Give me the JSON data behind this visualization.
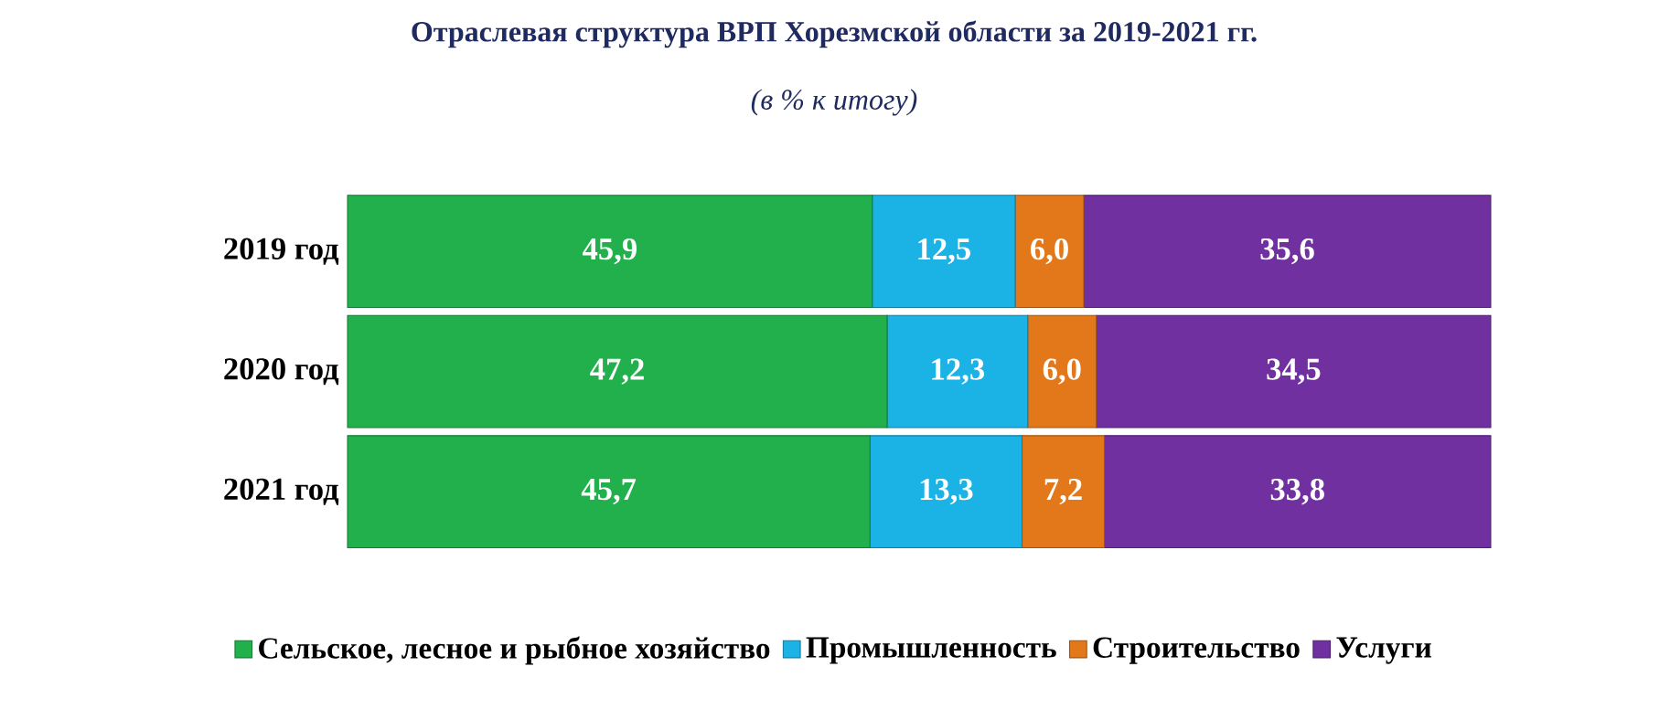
{
  "chart_data": {
    "type": "bar",
    "orientation": "horizontal",
    "stacked": true,
    "title": "Отраслевая структура ВРП Хорезмской области за 2019-2021 гг.",
    "subtitle": "(в % к итогу)",
    "categories": [
      "2019 год",
      "2020 год",
      "2021 год"
    ],
    "xlim": [
      0,
      100
    ],
    "tick_labels": "y",
    "legend": "bottom",
    "series": [
      {
        "name": "Сельское, лесное и рыбное хозяйство",
        "color": "#21b04b",
        "values": [
          45.9,
          47.2,
          45.7
        ],
        "value_labels": [
          "45,9",
          "47,2",
          "45,7"
        ]
      },
      {
        "name": "Промышленность",
        "color": "#1bb3e6",
        "values": [
          12.5,
          12.3,
          13.3
        ],
        "value_labels": [
          "12,5",
          "12,3",
          "13,3"
        ]
      },
      {
        "name": "Строительство",
        "color": "#e3781b",
        "values": [
          6.0,
          6.0,
          7.2
        ],
        "value_labels": [
          "6,0",
          "6,0",
          "7,2"
        ]
      },
      {
        "name": "Услуги",
        "color": "#7030a0",
        "values": [
          35.6,
          34.5,
          33.8
        ],
        "value_labels": [
          "35,6",
          "34,5",
          "33,8"
        ]
      }
    ]
  }
}
